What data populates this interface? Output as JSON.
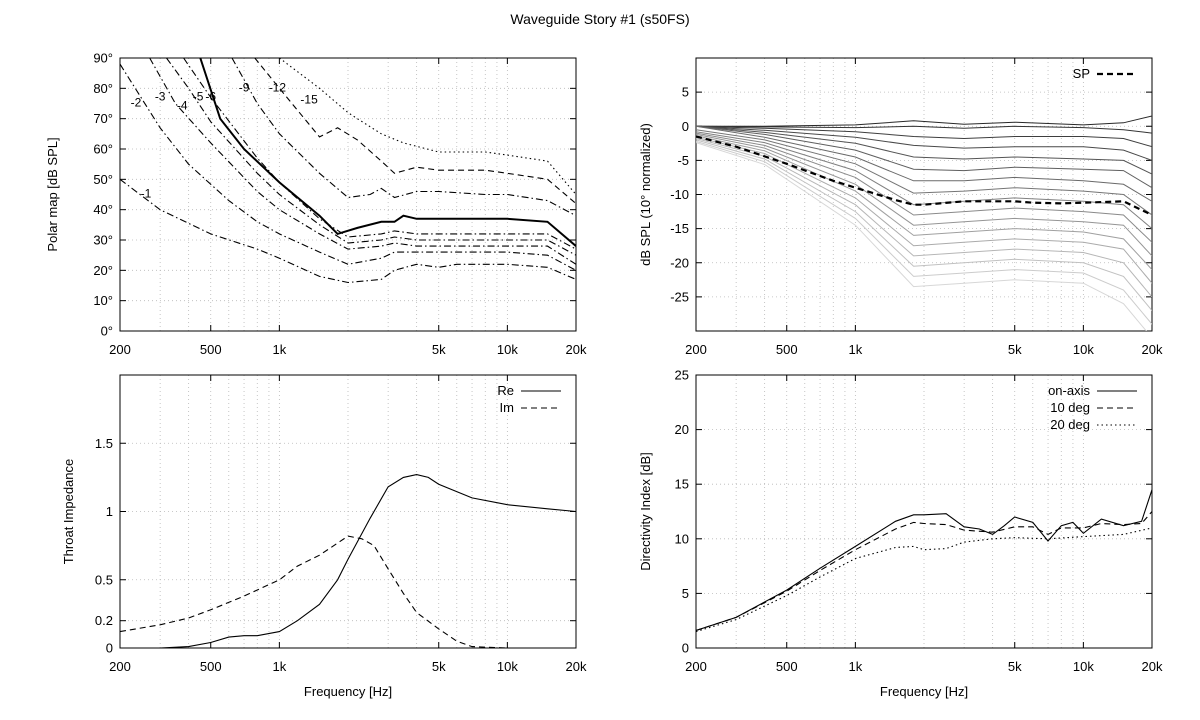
{
  "figure": {
    "title": "Waveguide Story #1 (s50FS)"
  },
  "x_ticks": [
    {
      "v": 200,
      "label": "200"
    },
    {
      "v": 500,
      "label": "500"
    },
    {
      "v": 1000,
      "label": "1k"
    },
    {
      "v": 5000,
      "label": "5k"
    },
    {
      "v": 10000,
      "label": "10k"
    },
    {
      "v": 20000,
      "label": "20k"
    }
  ],
  "chart_data": [
    {
      "type": "line",
      "panel": "polar-map",
      "ylabel": "Polar map [dB SPL]",
      "xscale": "log",
      "xlim": [
        200,
        20000
      ],
      "ylim": [
        0,
        90
      ],
      "yticks": [
        {
          "v": 0,
          "label": "0°"
        },
        {
          "v": 10,
          "label": "10°"
        },
        {
          "v": 20,
          "label": "20°"
        },
        {
          "v": 30,
          "label": "30°"
        },
        {
          "v": 40,
          "label": "40°"
        },
        {
          "v": 50,
          "label": "50°"
        },
        {
          "v": 60,
          "label": "60°"
        },
        {
          "v": 70,
          "label": "70°"
        },
        {
          "v": 80,
          "label": "80°"
        },
        {
          "v": 90,
          "label": "90°"
        }
      ],
      "grid": true,
      "contour_labels": [
        {
          "text": "-1",
          "x": 260,
          "y": 44
        },
        {
          "text": "-2",
          "x": 235,
          "y": 74
        },
        {
          "text": "-3",
          "x": 300,
          "y": 76
        },
        {
          "text": "-4",
          "x": 375,
          "y": 73
        },
        {
          "text": "-5",
          "x": 440,
          "y": 76
        },
        {
          "text": "-6",
          "x": 500,
          "y": 76
        },
        {
          "text": "-9",
          "x": 700,
          "y": 79
        },
        {
          "text": "-12",
          "x": 980,
          "y": 79
        },
        {
          "text": "-15",
          "x": 1350,
          "y": 75
        }
      ],
      "series": [
        {
          "label": "-1",
          "style": "dashdot",
          "x": [
            200,
            300,
            500,
            800,
            1000,
            1500,
            2000,
            2800,
            3200,
            4000,
            5000,
            6000,
            8000,
            10000,
            15000,
            20000
          ],
          "y": [
            50,
            40,
            32,
            27,
            24,
            18,
            16,
            17,
            20,
            22,
            21,
            22,
            22,
            22,
            21,
            17
          ]
        },
        {
          "label": "-2",
          "style": "dashdot",
          "x": [
            200,
            300,
            400,
            600,
            800,
            1000,
            1500,
            2000,
            2800,
            3200,
            4000,
            5000,
            8000,
            10000,
            15000,
            20000
          ],
          "y": [
            88,
            67,
            55,
            43,
            36,
            32,
            26,
            22,
            24,
            26,
            26,
            26,
            26,
            26,
            25,
            20
          ]
        },
        {
          "label": "-3",
          "style": "dashdot",
          "x": [
            270,
            350,
            500,
            800,
            1000,
            1500,
            2000,
            2800,
            3200,
            4000,
            5000,
            8000,
            10000,
            15000,
            20000
          ],
          "y": [
            90,
            75,
            62,
            46,
            40,
            32,
            27,
            28,
            29,
            28,
            28,
            28,
            28,
            28,
            22
          ]
        },
        {
          "label": "-4",
          "style": "dashdot",
          "x": [
            320,
            400,
            500,
            800,
            1000,
            1500,
            2000,
            2800,
            3200,
            4000,
            5000,
            8000,
            10000,
            15000,
            20000
          ],
          "y": [
            90,
            80,
            69,
            52,
            45,
            35,
            29,
            30,
            31,
            30,
            30,
            30,
            30,
            30,
            25
          ]
        },
        {
          "label": "-5",
          "style": "dashdot",
          "x": [
            380,
            500,
            800,
            1000,
            1500,
            2000,
            2800,
            3200,
            4000,
            5000,
            8000,
            10000,
            15000,
            20000
          ],
          "y": [
            90,
            77,
            57,
            49,
            37,
            31,
            32,
            33,
            32,
            32,
            32,
            32,
            32,
            27
          ]
        },
        {
          "label": "-6",
          "style": "solid",
          "x": [
            450,
            550,
            700,
            1000,
            1500,
            1800,
            2200,
            2800,
            3200,
            3500,
            4000,
            5000,
            6000,
            8000,
            10000,
            15000,
            20000
          ],
          "y": [
            90,
            70,
            60,
            49,
            38,
            32,
            34,
            36,
            36,
            38,
            37,
            37,
            37,
            37,
            37,
            36,
            28
          ]
        },
        {
          "label": "-9",
          "style": "dashdot",
          "x": [
            620,
            800,
            1000,
            1500,
            2000,
            2500,
            2800,
            3200,
            4000,
            5000,
            8000,
            10000,
            15000,
            20000
          ],
          "y": [
            90,
            75,
            65,
            52,
            44,
            45,
            47,
            44,
            46,
            46,
            45,
            45,
            43,
            38
          ]
        },
        {
          "label": "-12",
          "style": "dashed",
          "x": [
            780,
            1000,
            1500,
            1800,
            2200,
            2800,
            3200,
            4000,
            5000,
            8000,
            10000,
            15000,
            20000
          ],
          "y": [
            90,
            80,
            64,
            67,
            63,
            56,
            52,
            54,
            53,
            53,
            52,
            50,
            42
          ]
        },
        {
          "label": "-15",
          "style": "dotted",
          "x": [
            1000,
            1500,
            2000,
            2200,
            2800,
            3500,
            5000,
            8000,
            10000,
            15000,
            20000
          ],
          "y": [
            90,
            80,
            72,
            70,
            65,
            62,
            59,
            59,
            58,
            56,
            45
          ]
        }
      ]
    },
    {
      "type": "line",
      "panel": "normalized-spl",
      "ylabel": "dB SPL (10° normalized)",
      "xscale": "log",
      "xlim": [
        200,
        20000
      ],
      "ylim": [
        -30,
        10
      ],
      "yticks": [
        {
          "v": 5,
          "label": "5"
        },
        {
          "v": 0,
          "label": "0"
        },
        {
          "v": -5,
          "label": "-5"
        },
        {
          "v": -10,
          "label": "-10"
        },
        {
          "v": -15,
          "label": "-15"
        },
        {
          "v": -20,
          "label": "-20"
        },
        {
          "v": -25,
          "label": "-25"
        }
      ],
      "grid": true,
      "legend": [
        "SP"
      ],
      "legend_position": "top-right",
      "series": [
        {
          "label": "SP",
          "style": "dashed",
          "x": [
            200,
            300,
            500,
            800,
            1000,
            1500,
            1800,
            2000,
            3000,
            4000,
            5000,
            6000,
            8000,
            10000,
            15000,
            20000
          ],
          "y": [
            -1.5,
            -3,
            -5.5,
            -8,
            -9,
            -10.8,
            -11.5,
            -11.5,
            -11,
            -11,
            -11,
            -11.2,
            -11.3,
            -11.2,
            -11,
            -13
          ]
        }
      ],
      "fan_curves": {
        "x": [
          200,
          400,
          1000,
          1800,
          3000,
          5000,
          10000,
          15000,
          20000
        ],
        "curves": [
          {
            "y": [
              0,
              0,
              0.2,
              0.8,
              0.3,
              0.6,
              0.2,
              0.5,
              1.5
            ]
          },
          {
            "y": [
              0,
              -0.1,
              -0.2,
              0,
              -0.3,
              0,
              -0.2,
              -0.5,
              -1
            ]
          },
          {
            "y": [
              0,
              -0.3,
              -0.8,
              -1.5,
              -1.8,
              -1.5,
              -1.5,
              -1.8,
              -3
            ]
          },
          {
            "y": [
              0,
              -0.6,
              -1.6,
              -2.8,
              -3.2,
              -3,
              -3,
              -3.5,
              -5
            ]
          },
          {
            "y": [
              0,
              -0.9,
              -2.5,
              -4.5,
              -4.8,
              -4.5,
              -4.8,
              -5,
              -7
            ]
          },
          {
            "y": [
              0,
              -1.2,
              -3.5,
              -6.3,
              -6.5,
              -6,
              -6.3,
              -6.5,
              -9
            ]
          },
          {
            "y": [
              0,
              -1.6,
              -4.5,
              -8,
              -8,
              -7.5,
              -8,
              -8.5,
              -11
            ]
          },
          {
            "y": [
              -0.5,
              -2,
              -5.5,
              -9.8,
              -9.5,
              -9,
              -9.5,
              -10,
              -13
            ]
          },
          {
            "y": [
              -0.8,
              -2.4,
              -6.5,
              -11.5,
              -11,
              -10.5,
              -11,
              -11.5,
              -15
            ]
          },
          {
            "y": [
              -1,
              -2.8,
              -7.5,
              -13,
              -12.5,
              -12,
              -12.5,
              -13,
              -17
            ]
          },
          {
            "y": [
              -1.2,
              -3.2,
              -8.5,
              -14.5,
              -14,
              -13.5,
              -14,
              -14.5,
              -19
            ]
          },
          {
            "y": [
              -1.4,
              -3.6,
              -9.5,
              -16,
              -15.5,
              -15,
              -15.5,
              -16.5,
              -21
            ]
          },
          {
            "y": [
              -1.6,
              -4,
              -10.5,
              -17.5,
              -17,
              -16.5,
              -17,
              -18,
              -23
            ]
          },
          {
            "y": [
              -1.8,
              -4.4,
              -11.5,
              -19,
              -18.5,
              -18,
              -18.5,
              -20,
              -25
            ]
          },
          {
            "y": [
              -2,
              -4.8,
              -12.5,
              -20.5,
              -20,
              -19.5,
              -20,
              -22,
              -27
            ]
          },
          {
            "y": [
              -2.2,
              -5.2,
              -13.5,
              -22,
              -21.5,
              -21,
              -21.5,
              -24,
              -29
            ]
          },
          {
            "y": [
              -2.4,
              -5.6,
              -14.5,
              -23.5,
              -23,
              -22.5,
              -23,
              -26,
              -31
            ]
          }
        ]
      }
    },
    {
      "type": "line",
      "panel": "throat-impedance",
      "ylabel": "Throat Impedance",
      "xlabel": "Frequency [Hz]",
      "xscale": "log",
      "xlim": [
        200,
        20000
      ],
      "ylim": [
        0,
        2
      ],
      "yticks": [
        {
          "v": 0,
          "label": "0"
        },
        {
          "v": 0.2,
          "label": "0.2"
        },
        {
          "v": 0.5,
          "label": "0.5"
        },
        {
          "v": 1,
          "label": "1"
        },
        {
          "v": 1.5,
          "label": "1.5"
        }
      ],
      "grid": true,
      "legend": [
        "Re",
        "Im"
      ],
      "legend_position": "top-right",
      "series": [
        {
          "name": "Re",
          "style": "solid",
          "x": [
            200,
            300,
            400,
            500,
            600,
            700,
            800,
            1000,
            1200,
            1500,
            1800,
            2000,
            2500,
            3000,
            3500,
            4000,
            4500,
            5000,
            7000,
            10000,
            15000,
            20000
          ],
          "y": [
            0,
            0,
            0.01,
            0.04,
            0.08,
            0.09,
            0.09,
            0.12,
            0.2,
            0.32,
            0.5,
            0.65,
            0.95,
            1.18,
            1.25,
            1.27,
            1.25,
            1.2,
            1.1,
            1.05,
            1.02,
            1.0
          ]
        },
        {
          "name": "Im",
          "style": "dashed",
          "x": [
            200,
            300,
            400,
            500,
            700,
            1000,
            1200,
            1500,
            2000,
            2300,
            2600,
            3000,
            3500,
            4000,
            5000,
            6000,
            7000,
            10000,
            20000
          ],
          "y": [
            0.12,
            0.17,
            0.22,
            0.28,
            0.38,
            0.5,
            0.6,
            0.68,
            0.82,
            0.8,
            0.75,
            0.58,
            0.4,
            0.26,
            0.14,
            0.05,
            0.01,
            0,
            0
          ]
        }
      ]
    },
    {
      "type": "line",
      "panel": "directivity-index",
      "ylabel": "Directivity Index [dB]",
      "xlabel": "Frequency [Hz]",
      "xscale": "log",
      "xlim": [
        200,
        20000
      ],
      "ylim": [
        0,
        25
      ],
      "yticks": [
        {
          "v": 0,
          "label": "0"
        },
        {
          "v": 5,
          "label": "5"
        },
        {
          "v": 10,
          "label": "10"
        },
        {
          "v": 15,
          "label": "15"
        },
        {
          "v": 20,
          "label": "20"
        },
        {
          "v": 25,
          "label": "25"
        }
      ],
      "grid": true,
      "legend": [
        "on-axis",
        "10 deg",
        "20 deg"
      ],
      "legend_position": "top-right",
      "series": [
        {
          "name": "on-axis",
          "style": "solid",
          "x": [
            200,
            300,
            500,
            700,
            1000,
            1500,
            1800,
            2000,
            2500,
            3000,
            3500,
            4000,
            4500,
            5000,
            6000,
            7000,
            8000,
            9000,
            10000,
            12000,
            15000,
            18000,
            20000
          ],
          "y": [
            1.6,
            2.8,
            5.3,
            7.3,
            9.3,
            11.6,
            12.2,
            12.2,
            12.3,
            11.1,
            10.9,
            10.4,
            11.2,
            12.0,
            11.5,
            9.8,
            11.2,
            11.5,
            10.5,
            11.8,
            11.2,
            11.6,
            14.5
          ]
        },
        {
          "name": "10 deg",
          "style": "dashed",
          "x": [
            200,
            300,
            500,
            700,
            1000,
            1500,
            1800,
            2000,
            2500,
            3000,
            4000,
            5000,
            6000,
            7000,
            8000,
            10000,
            12000,
            15000,
            18000,
            20000
          ],
          "y": [
            1.6,
            2.8,
            5.2,
            7.1,
            9.0,
            10.9,
            11.5,
            11.4,
            11.3,
            10.8,
            10.6,
            11.1,
            11.1,
            10.4,
            11.0,
            11.0,
            11.4,
            11.3,
            11.4,
            12.5
          ]
        },
        {
          "name": "20 deg",
          "style": "dotted",
          "x": [
            200,
            300,
            500,
            700,
            1000,
            1500,
            1800,
            2000,
            2500,
            3000,
            4000,
            5000,
            7000,
            10000,
            15000,
            20000
          ],
          "y": [
            1.5,
            2.6,
            4.8,
            6.5,
            8.2,
            9.2,
            9.3,
            9.0,
            9.1,
            9.7,
            10.0,
            10.1,
            10.0,
            10.2,
            10.4,
            11.0
          ]
        }
      ]
    }
  ]
}
